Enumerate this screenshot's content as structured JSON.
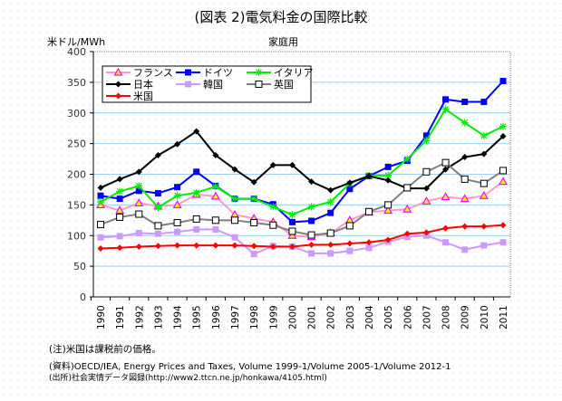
{
  "title": "(図表 2)電気料金の国際比較",
  "chart_data": {
    "type": "line",
    "title": "(図表 2)電気料金の国際比較",
    "subtitle": "家庭用",
    "ylabel": "米ドル/MWh",
    "xlabel": "",
    "ylim": [
      0,
      400
    ],
    "yticks": [
      0,
      50,
      100,
      150,
      200,
      250,
      300,
      350,
      400
    ],
    "grid": true,
    "legend": "top-left",
    "x": [
      "1990",
      "1991",
      "1992",
      "1993",
      "1994",
      "1995",
      "1996",
      "1997",
      "1998",
      "1999",
      "2000",
      "2001",
      "2002",
      "2003",
      "2004",
      "2005",
      "2006",
      "2007",
      "2008",
      "2009",
      "2010",
      "2011"
    ],
    "series": [
      {
        "name": "フランス",
        "color": "#ff99cc",
        "marker": "triangle",
        "values": [
          150,
          141,
          153,
          148,
          150,
          167,
          164,
          134,
          128,
          122,
          100,
          98,
          104,
          125,
          138,
          141,
          143,
          156,
          163,
          160,
          165,
          188
        ]
      },
      {
        "name": "ドイツ",
        "color": "#0000ff",
        "marker": "square",
        "values": [
          165,
          160,
          173,
          169,
          179,
          204,
          181,
          160,
          160,
          151,
          122,
          124,
          137,
          176,
          197,
          212,
          222,
          263,
          322,
          318,
          318,
          352
        ]
      },
      {
        "name": "イタリア",
        "color": "#00ee00",
        "marker": "asterisk",
        "values": [
          155,
          172,
          181,
          146,
          165,
          170,
          180,
          160,
          160,
          147,
          134,
          147,
          155,
          185,
          198,
          198,
          225,
          255,
          306,
          284,
          263,
          278
        ]
      },
      {
        "name": "日本",
        "color": "#000000",
        "marker": "diamond",
        "values": [
          178,
          192,
          204,
          231,
          249,
          270,
          231,
          208,
          187,
          215,
          215,
          188,
          174,
          186,
          197,
          190,
          177,
          177,
          208,
          228,
          233,
          262
        ]
      },
      {
        "name": "韓国",
        "color": "#cc99ff",
        "marker": "square",
        "values": [
          97,
          99,
          104,
          103,
          106,
          110,
          110,
          97,
          70,
          83,
          82,
          71,
          71,
          75,
          80,
          90,
          98,
          100,
          89,
          77,
          84,
          89
        ]
      },
      {
        "name": "英国",
        "color": "#808080",
        "marker": "open-square",
        "values": [
          118,
          130,
          135,
          116,
          121,
          127,
          125,
          125,
          121,
          117,
          107,
          101,
          104,
          116,
          139,
          150,
          178,
          204,
          219,
          192,
          185,
          206
        ]
      },
      {
        "name": "米国",
        "color": "#ff0000",
        "marker": "diamond",
        "values": [
          79,
          80,
          82,
          83,
          84,
          84,
          84,
          84,
          83,
          82,
          82,
          85,
          85,
          87,
          89,
          93,
          103,
          105,
          112,
          115,
          115,
          117
        ]
      }
    ]
  },
  "notes": [
    "(注)米国は課税前の価格。",
    "(資料)OECD/IEA, Energy Prices and Taxes, Volume 1999-1/Volume 2005-1/Volume 2012-1",
    "(出所)社会実情データ図録(http://www2.ttcn.ne.jp/honkawa/4105.html)"
  ]
}
